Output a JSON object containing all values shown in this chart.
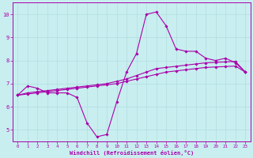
{
  "xlabel": "Windchill (Refroidissement éolien,°C)",
  "xlim": [
    -0.5,
    23.5
  ],
  "ylim": [
    4.5,
    10.5
  ],
  "yticks": [
    5,
    6,
    7,
    8,
    9,
    10
  ],
  "xticks": [
    0,
    1,
    2,
    3,
    4,
    5,
    6,
    7,
    8,
    9,
    10,
    11,
    12,
    13,
    14,
    15,
    16,
    17,
    18,
    19,
    20,
    21,
    22,
    23
  ],
  "bg_color": "#c8eef0",
  "line_color": "#aa00aa",
  "grid_color": "#b0dde0",
  "line1_y": [
    6.5,
    6.9,
    6.8,
    6.6,
    6.6,
    6.6,
    6.4,
    5.3,
    4.7,
    4.8,
    6.2,
    7.5,
    8.3,
    10.0,
    10.1,
    9.5,
    8.5,
    8.4,
    8.4,
    8.1,
    8.0,
    8.1,
    7.9,
    7.5
  ],
  "line2_y": [
    6.5,
    6.55,
    6.6,
    6.65,
    6.7,
    6.75,
    6.8,
    6.85,
    6.9,
    6.95,
    7.0,
    7.1,
    7.2,
    7.3,
    7.4,
    7.5,
    7.55,
    7.6,
    7.65,
    7.7,
    7.72,
    7.74,
    7.76,
    7.5
  ],
  "line3_y": [
    6.5,
    6.6,
    6.65,
    6.7,
    6.75,
    6.8,
    6.85,
    6.9,
    6.95,
    7.0,
    7.1,
    7.2,
    7.35,
    7.5,
    7.65,
    7.7,
    7.75,
    7.8,
    7.85,
    7.9,
    7.92,
    7.94,
    7.96,
    7.5
  ]
}
